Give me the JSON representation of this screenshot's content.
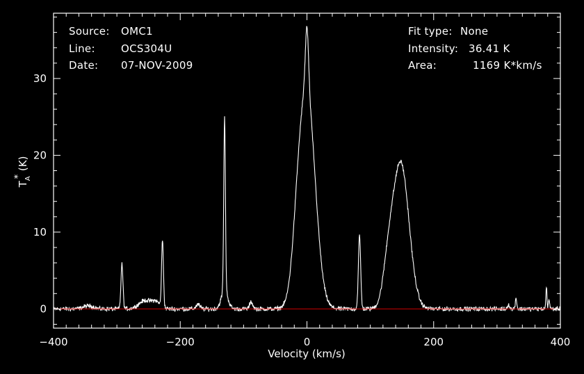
{
  "header": {
    "left": [
      {
        "label": "Source:",
        "value": "OMC1"
      },
      {
        "label": "Line:",
        "value": "OCS304U"
      },
      {
        "label": "Date:",
        "value": "07-NOV-2009"
      }
    ],
    "right": [
      {
        "label": "Fit type:",
        "value": "None"
      },
      {
        "label": "Intensity:",
        "value": "36.41 K"
      },
      {
        "label": "Area:",
        "value": "1169 K*km/s"
      }
    ]
  },
  "chart_data": {
    "type": "line",
    "title": "",
    "xlabel": "Velocity (km/s)",
    "ylabel_main": "T",
    "ylabel_sub": "A",
    "ylabel_sup": "*",
    "ylabel_unit": " (K)",
    "xlim": [
      -400,
      400
    ],
    "ylim": [
      -2.5,
      38.5
    ],
    "x_ticks": [
      -400,
      -200,
      0,
      200,
      400
    ],
    "x_tick_labels": [
      "−400",
      "−200",
      "0",
      "200",
      "400"
    ],
    "y_ticks": [
      0,
      10,
      20,
      30
    ],
    "y_tick_labels": [
      "0",
      "10",
      "20",
      "30"
    ],
    "x_minor_step": 20,
    "y_minor_step": 2,
    "grid": false,
    "background": "#000000",
    "axis_color": "#ffffff",
    "baseline": {
      "y": 0,
      "color": "#cc0000"
    },
    "series": [
      {
        "color": "#ffffff",
        "peaks": [
          {
            "center": -345,
            "height": 0.4,
            "width": 8
          },
          {
            "center": -292,
            "height": 5.8,
            "width": 1.6
          },
          {
            "center": -255,
            "height": 1.1,
            "width": 10
          },
          {
            "center": -228,
            "height": 8.7,
            "width": 1.5
          },
          {
            "center": -238,
            "height": 0.8,
            "width": 6
          },
          {
            "center": -172,
            "height": 0.6,
            "width": 3
          },
          {
            "center": -130,
            "height": 22.5,
            "width": 1.3
          },
          {
            "center": -130,
            "height": 2.5,
            "width": 5
          },
          {
            "center": -88,
            "height": 0.9,
            "width": 2.5
          },
          {
            "center": 0,
            "height": 28.0,
            "width": 13
          },
          {
            "center": 0,
            "height": 8.0,
            "width": 2.5
          },
          {
            "center": -15,
            "height": 4.0,
            "width": 8
          },
          {
            "center": 83,
            "height": 9.5,
            "width": 1.8
          },
          {
            "center": 148,
            "height": 19.0,
            "width": 13
          },
          {
            "center": 128,
            "height": 4.0,
            "width": 8
          },
          {
            "center": 318,
            "height": 0.6,
            "width": 1.5
          },
          {
            "center": 330,
            "height": 1.4,
            "width": 1.2
          },
          {
            "center": 378,
            "height": 2.8,
            "width": 0.9
          },
          {
            "center": 382,
            "height": 1.2,
            "width": 1.0
          }
        ],
        "step": 0.5,
        "noise_rms": 0.28
      }
    ]
  }
}
